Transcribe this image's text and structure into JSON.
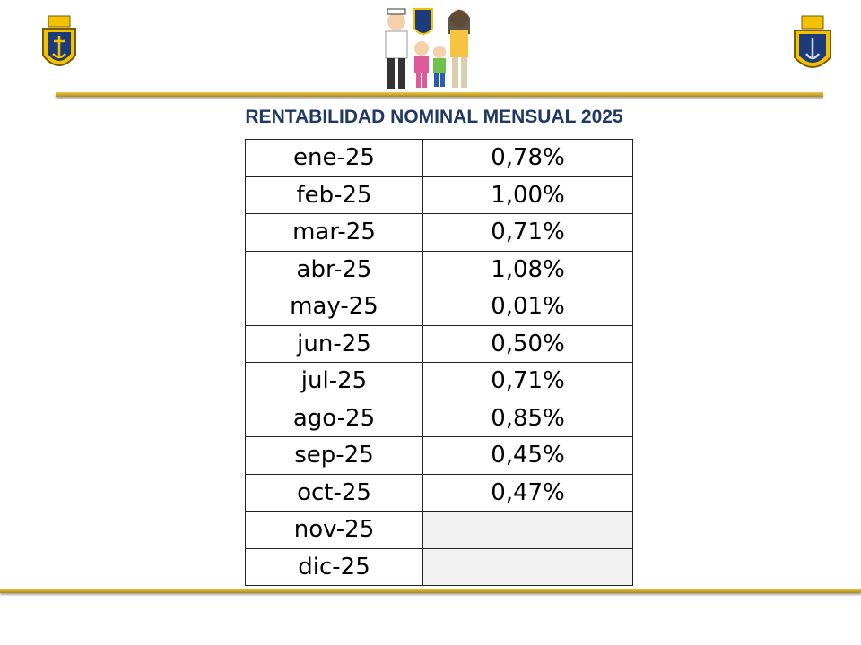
{
  "title": "RENTABILIDAD NOMINAL MENSUAL 2025",
  "table": {
    "rows": [
      [
        "ene-25",
        "0,78%"
      ],
      [
        "feb-25",
        "1,00%"
      ],
      [
        "mar-25",
        "0,71%"
      ],
      [
        "abr-25",
        "1,08%"
      ],
      [
        "may-25",
        "0,01%"
      ],
      [
        "jun-25",
        "0,50%"
      ],
      [
        "jul-25",
        "0,71%"
      ],
      [
        "ago-25",
        "0,85%"
      ],
      [
        "sep-25",
        "0,45%"
      ],
      [
        "oct-25",
        "0,47%"
      ],
      [
        "nov-25"
      ],
      [
        "dic-25"
      ]
    ]
  }
}
